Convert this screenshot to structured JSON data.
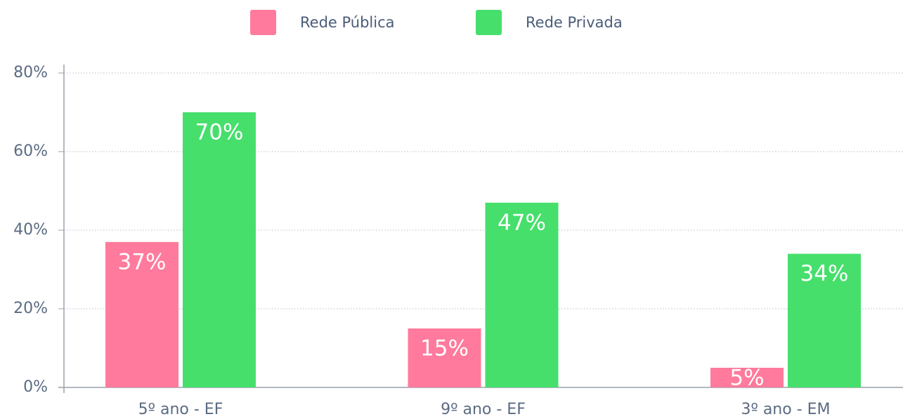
{
  "chart_data": {
    "type": "bar",
    "categories": [
      "5º ano - EF",
      "9º ano - EF",
      "3º ano - EM"
    ],
    "series": [
      {
        "name": "Rede Pública",
        "color": "#ff7a9c",
        "values": [
          37,
          15,
          5
        ],
        "value_labels": [
          "37%",
          "15%",
          "5%"
        ]
      },
      {
        "name": "Rede Privada",
        "color": "#46df6c",
        "values": [
          70,
          47,
          34
        ],
        "value_labels": [
          "70%",
          "47%",
          "34%"
        ]
      }
    ],
    "ylim": [
      0,
      80
    ],
    "yticks": [
      {
        "value": 0,
        "label": "0%"
      },
      {
        "value": 20,
        "label": "20%"
      },
      {
        "value": 40,
        "label": "40%"
      },
      {
        "value": 60,
        "label": "60%"
      },
      {
        "value": 80,
        "label": "80%"
      }
    ],
    "grid": true,
    "legend": "top"
  }
}
